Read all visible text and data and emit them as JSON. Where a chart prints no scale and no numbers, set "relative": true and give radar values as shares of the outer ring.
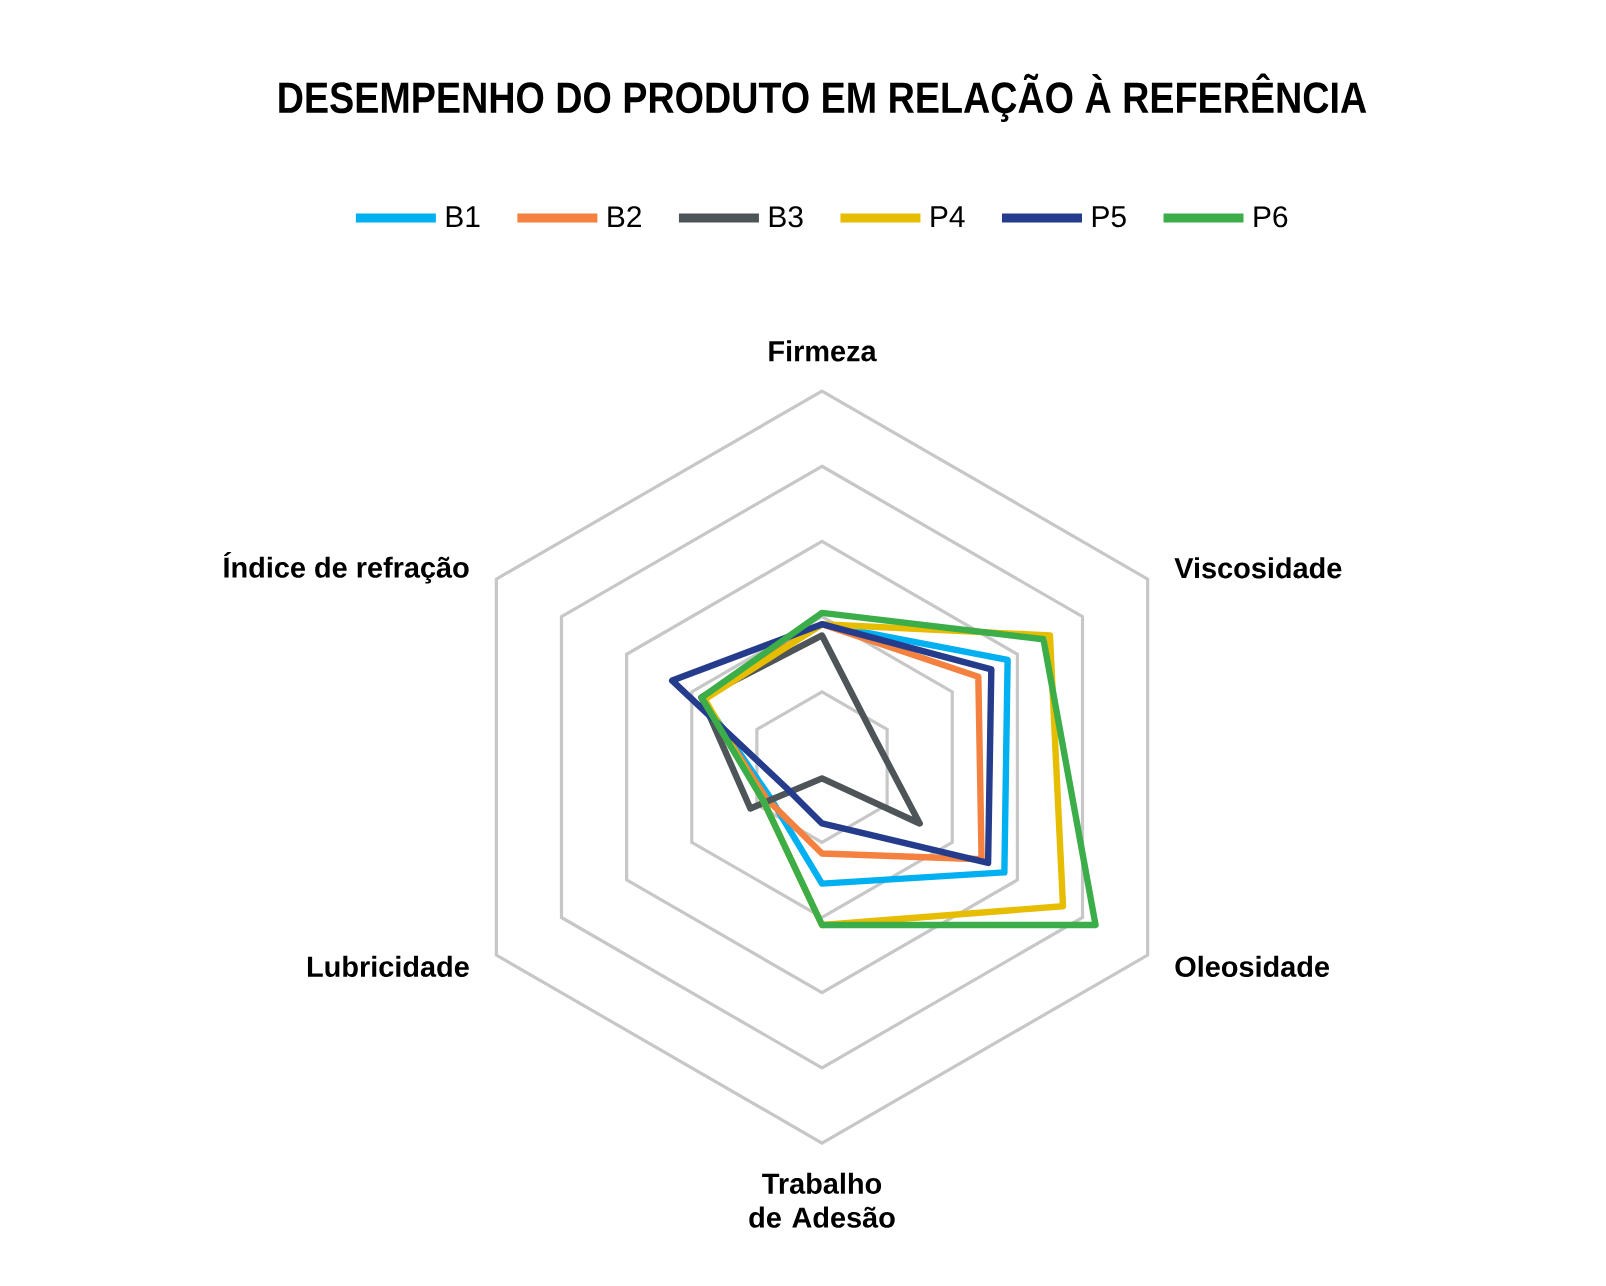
{
  "chart_data": {
    "type": "radar",
    "title": "DESEMPENHO DO PRODUTO EM RELAÇÃO À REFERÊNCIA",
    "categories": [
      "Firmeza",
      "Viscosidade",
      "Oleosidade",
      "Trabalho de Adesão",
      "Lubricidade",
      "Índice de refração"
    ],
    "relative": true,
    "grid": true,
    "legend": "top",
    "line_style": "solid",
    "series": [
      {
        "name": "B1",
        "color": "#00b0f0",
        "values": [
          0.38,
          0.57,
          0.56,
          0.31,
          0.16,
          0.37
        ]
      },
      {
        "name": "B2",
        "color": "#f4813f",
        "values": [
          0.38,
          0.48,
          0.49,
          0.23,
          0.17,
          0.37
        ]
      },
      {
        "name": "B3",
        "color": "#4d5559",
        "values": [
          0.35,
          0.16,
          0.3,
          0.03,
          0.22,
          0.37
        ]
      },
      {
        "name": "P4",
        "color": "#e6bd00",
        "values": [
          0.38,
          0.7,
          0.74,
          0.42,
          0.18,
          0.36
        ]
      },
      {
        "name": "P5",
        "color": "#253c8c",
        "values": [
          0.38,
          0.52,
          0.51,
          0.15,
          0.11,
          0.46
        ]
      },
      {
        "name": "P6",
        "color": "#3cae49",
        "values": [
          0.41,
          0.68,
          0.84,
          0.42,
          0.18,
          0.37
        ]
      }
    ]
  }
}
